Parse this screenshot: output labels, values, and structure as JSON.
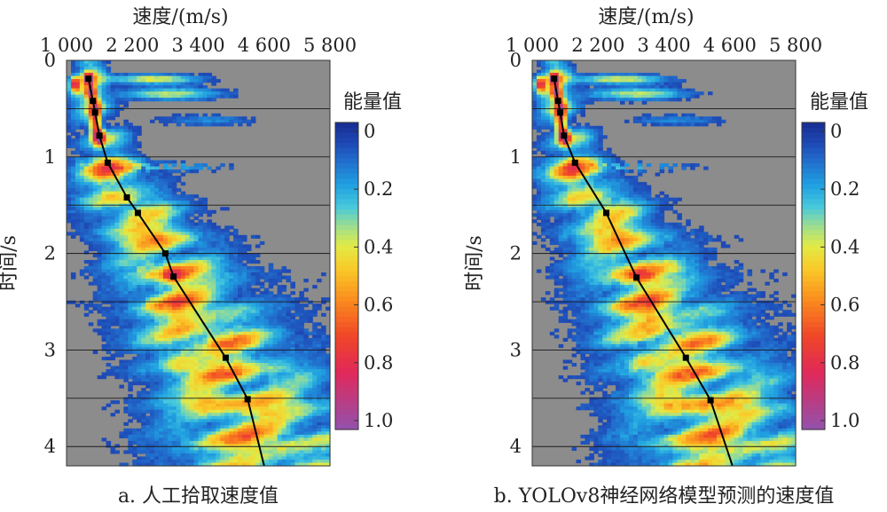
{
  "chart_data": [
    {
      "type": "heatmap",
      "panel_caption": "a. 人工拾取速度值",
      "xlabel": "速度/(m/s)",
      "ylabel": "时间/s",
      "xlim": [
        1000,
        5800
      ],
      "ylim": [
        0,
        4.2
      ],
      "x_ticks": [
        1000,
        2200,
        3400,
        4600,
        5800
      ],
      "x_tick_labels": [
        "1 000",
        "2 200",
        "3 400",
        "4 600",
        "5 800"
      ],
      "y_ticks": [
        0,
        1,
        2,
        3,
        4
      ],
      "y_tick_labels": [
        "0",
        "1",
        "2",
        "3",
        "4"
      ],
      "grid": "horizontal",
      "colorbar": {
        "title": "能量值",
        "ticks": [
          0,
          0.2,
          0.4,
          0.6,
          0.8,
          1.0
        ],
        "tick_labels": [
          "0",
          "0.2",
          "0.4",
          "0.6",
          "0.8",
          "1.0"
        ],
        "background_color": "#8c8c8c"
      },
      "picked_points": [
        {
          "velocity": 1400,
          "time": 0.19
        },
        {
          "velocity": 1480,
          "time": 0.42
        },
        {
          "velocity": 1520,
          "time": 0.54
        },
        {
          "velocity": 1600,
          "time": 0.78
        },
        {
          "velocity": 1750,
          "time": 1.06
        },
        {
          "velocity": 2100,
          "time": 1.42
        },
        {
          "velocity": 2300,
          "time": 1.58
        },
        {
          "velocity": 2800,
          "time": 2.0
        },
        {
          "velocity": 2950,
          "time": 2.24
        },
        {
          "velocity": 3900,
          "time": 3.08
        },
        {
          "velocity": 4300,
          "time": 3.51
        }
      ],
      "curve_end": {
        "velocity": 4600,
        "time": 4.2
      }
    },
    {
      "type": "heatmap",
      "panel_caption": "b. YOLOv8神经网络模型预测的速度值",
      "xlabel": "速度/(m/s)",
      "ylabel": "时间/s",
      "xlim": [
        1000,
        5800
      ],
      "ylim": [
        0,
        4.2
      ],
      "x_ticks": [
        1000,
        2200,
        3400,
        4600,
        5800
      ],
      "x_tick_labels": [
        "1 000",
        "2 200",
        "3 400",
        "4 600",
        "5 800"
      ],
      "y_ticks": [
        0,
        1,
        2,
        3,
        4
      ],
      "y_tick_labels": [
        "0",
        "1",
        "2",
        "3",
        "4"
      ],
      "grid": "horizontal",
      "colorbar": {
        "title": "能量值",
        "ticks": [
          0,
          0.2,
          0.4,
          0.6,
          0.8,
          1.0
        ],
        "tick_labels": [
          "0",
          "0.2",
          "0.4",
          "0.6",
          "0.8",
          "1.0"
        ],
        "background_color": "#8c8c8c"
      },
      "picked_points": [
        {
          "velocity": 1400,
          "time": 0.19
        },
        {
          "velocity": 1470,
          "time": 0.42
        },
        {
          "velocity": 1510,
          "time": 0.54
        },
        {
          "velocity": 1580,
          "time": 0.78
        },
        {
          "velocity": 1780,
          "time": 1.06
        },
        {
          "velocity": 2350,
          "time": 1.58
        },
        {
          "velocity": 2900,
          "time": 2.25
        },
        {
          "velocity": 3800,
          "time": 3.08
        },
        {
          "velocity": 4250,
          "time": 3.52
        }
      ],
      "curve_end": {
        "velocity": 4650,
        "time": 4.2
      }
    }
  ]
}
